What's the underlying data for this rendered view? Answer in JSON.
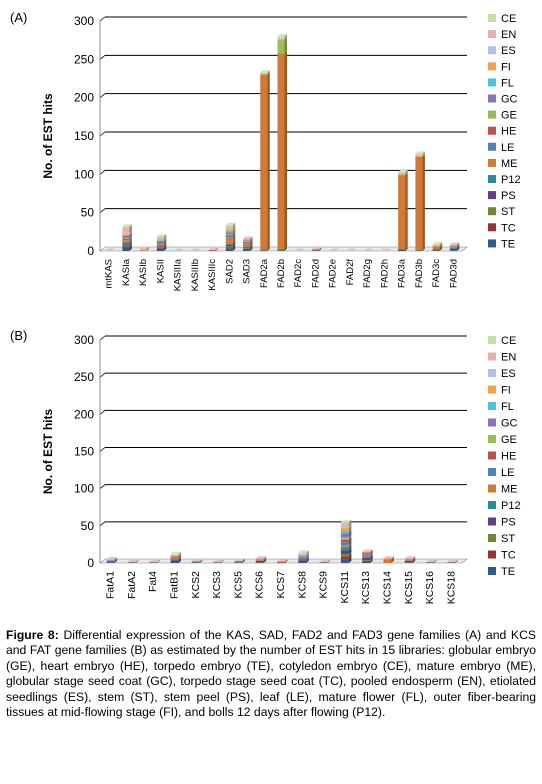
{
  "colors": {
    "CE": "#c5dfa5",
    "EN": "#e6b0b0",
    "ES": "#b2c2e0",
    "FI": "#f4a14c",
    "FL": "#4bc3df",
    "GC": "#8b72b6",
    "GE": "#9bbb59",
    "HE": "#c0504d",
    "LE": "#4f81bd",
    "ME": "#d07a36",
    "P12": "#2d8a9e",
    "PS": "#5f3f87",
    "ST": "#6f8a2e",
    "TC": "#943634",
    "TE": "#2e5b8e"
  },
  "legend_order": [
    "CE",
    "EN",
    "ES",
    "FI",
    "FL",
    "GC",
    "GE",
    "HE",
    "LE",
    "ME",
    "P12",
    "PS",
    "ST",
    "TC",
    "TE"
  ],
  "panels": [
    {
      "label": "(A)"
    },
    {
      "label": "(B)"
    }
  ],
  "chart_data": [
    {
      "type": "bar",
      "stacked": true,
      "panel": "(A)",
      "ylabel": "No. of EST hits",
      "ylim": [
        0,
        300
      ],
      "yticks": [
        0,
        50,
        100,
        150,
        200,
        250,
        300
      ],
      "grid": true,
      "legend_position": "right",
      "categories": [
        "mtKAS",
        "KASIa",
        "KASIb",
        "KASII",
        "KASIIIa",
        "KASIIIb",
        "KASIIIc",
        "SAD2",
        "SAD3",
        "FAD2a",
        "FAD2b",
        "FAD2c",
        "FAD2d",
        "FAD2e",
        "FAD2f",
        "FAD2g",
        "FAD2h",
        "FAD3a",
        "FAD3b",
        "FAD3c",
        "FAD3d"
      ],
      "series": [
        {
          "name": "TE",
          "values": [
            0,
            4,
            0,
            3,
            0,
            0,
            0,
            3,
            2,
            1,
            1,
            0,
            0,
            0,
            0,
            0,
            0,
            2,
            1,
            1,
            1
          ]
        },
        {
          "name": "TC",
          "values": [
            0,
            2,
            0,
            1,
            0,
            0,
            1,
            2,
            1,
            0,
            0,
            0,
            0,
            0,
            0,
            0,
            0,
            0,
            0,
            1,
            0
          ]
        },
        {
          "name": "ST",
          "values": [
            0,
            2,
            0,
            1,
            0,
            0,
            0,
            1,
            1,
            1,
            2,
            0,
            0,
            0,
            0,
            0,
            0,
            0,
            0,
            0,
            0
          ]
        },
        {
          "name": "PS",
          "values": [
            0,
            2,
            0,
            1,
            0,
            0,
            0,
            2,
            1,
            0,
            0,
            0,
            1,
            0,
            0,
            0,
            0,
            0,
            0,
            0,
            2
          ]
        },
        {
          "name": "P12",
          "values": [
            0,
            1,
            0,
            1,
            0,
            0,
            0,
            2,
            1,
            0,
            0,
            0,
            0,
            0,
            0,
            0,
            0,
            0,
            0,
            0,
            1
          ]
        },
        {
          "name": "ME",
          "values": [
            0,
            3,
            1,
            3,
            0,
            0,
            0,
            8,
            4,
            228,
            255,
            0,
            0,
            0,
            0,
            0,
            0,
            97,
            122,
            4,
            2
          ]
        },
        {
          "name": "LE",
          "values": [
            0,
            1,
            0,
            1,
            0,
            0,
            0,
            2,
            1,
            0,
            0,
            0,
            0,
            0,
            0,
            0,
            0,
            0,
            0,
            0,
            0
          ]
        },
        {
          "name": "HE",
          "values": [
            0,
            1,
            0,
            1,
            0,
            0,
            0,
            1,
            1,
            0,
            0,
            0,
            0,
            0,
            0,
            0,
            0,
            0,
            0,
            0,
            0
          ]
        },
        {
          "name": "GE",
          "values": [
            0,
            1,
            0,
            0,
            0,
            0,
            0,
            1,
            1,
            0,
            17,
            0,
            0,
            0,
            0,
            0,
            0,
            0,
            0,
            0,
            0
          ]
        },
        {
          "name": "GC",
          "values": [
            0,
            3,
            0,
            1,
            0,
            0,
            0,
            2,
            1,
            0,
            0,
            0,
            1,
            0,
            0,
            0,
            0,
            0,
            0,
            0,
            1
          ]
        },
        {
          "name": "FL",
          "values": [
            0,
            1,
            0,
            1,
            0,
            0,
            0,
            2,
            0,
            0,
            0,
            0,
            0,
            0,
            0,
            0,
            0,
            0,
            0,
            0,
            0
          ]
        },
        {
          "name": "FI",
          "values": [
            0,
            1,
            0,
            1,
            0,
            0,
            0,
            2,
            1,
            1,
            1,
            0,
            0,
            0,
            0,
            0,
            0,
            1,
            1,
            1,
            0
          ]
        },
        {
          "name": "ES",
          "values": [
            0,
            1,
            1,
            1,
            0,
            0,
            0,
            1,
            0,
            0,
            1,
            0,
            0,
            0,
            0,
            0,
            0,
            1,
            1,
            0,
            0
          ]
        },
        {
          "name": "EN",
          "values": [
            0,
            8,
            1,
            2,
            0,
            0,
            0,
            3,
            1,
            1,
            1,
            0,
            0,
            0,
            0,
            0,
            0,
            1,
            1,
            1,
            1
          ]
        },
        {
          "name": "CE",
          "values": [
            0,
            1,
            0,
            1,
            0,
            0,
            0,
            2,
            0,
            1,
            2,
            0,
            0,
            0,
            0,
            0,
            0,
            1,
            1,
            1,
            0
          ]
        }
      ]
    },
    {
      "type": "bar",
      "stacked": true,
      "panel": "(B)",
      "ylabel": "No. of EST hits",
      "ylim": [
        0,
        300
      ],
      "yticks": [
        0,
        50,
        100,
        150,
        200,
        250,
        300
      ],
      "grid": true,
      "legend_position": "right",
      "categories": [
        "FatA1",
        "FatA2",
        "Fat4",
        "FatB1",
        "KCS2",
        "KCS3",
        "KCS5",
        "KCS6",
        "KCS7",
        "KCS8",
        "KCS9",
        "KCS11",
        "KCS13",
        "KCS14",
        "KCS15",
        "KCS16",
        "KCS18"
      ],
      "series": [
        {
          "name": "TE",
          "values": [
            1,
            1,
            1,
            2,
            1,
            1,
            1,
            1,
            0,
            2,
            1,
            5,
            2,
            0,
            1,
            1,
            1
          ]
        },
        {
          "name": "TC",
          "values": [
            0,
            0,
            0,
            1,
            0,
            0,
            0,
            1,
            1,
            1,
            0,
            4,
            1,
            0,
            1,
            0,
            0
          ]
        },
        {
          "name": "ST",
          "values": [
            0,
            0,
            0,
            0,
            0,
            0,
            0,
            0,
            0,
            0,
            0,
            3,
            1,
            0,
            0,
            0,
            0
          ]
        },
        {
          "name": "PS",
          "values": [
            1,
            0,
            0,
            1,
            0,
            0,
            0,
            1,
            0,
            1,
            0,
            5,
            3,
            0,
            1,
            0,
            0
          ]
        },
        {
          "name": "P12",
          "values": [
            0,
            0,
            0,
            1,
            1,
            0,
            1,
            0,
            0,
            2,
            0,
            4,
            2,
            0,
            0,
            0,
            0
          ]
        },
        {
          "name": "ME",
          "values": [
            1,
            0,
            0,
            2,
            0,
            0,
            0,
            1,
            1,
            1,
            0,
            3,
            1,
            5,
            1,
            0,
            0
          ]
        },
        {
          "name": "LE",
          "values": [
            0,
            0,
            0,
            0,
            0,
            0,
            0,
            0,
            0,
            1,
            0,
            4,
            1,
            0,
            0,
            0,
            0
          ]
        },
        {
          "name": "HE",
          "values": [
            0,
            0,
            0,
            1,
            0,
            0,
            0,
            0,
            0,
            0,
            0,
            3,
            1,
            0,
            0,
            0,
            0
          ]
        },
        {
          "name": "GE",
          "values": [
            0,
            0,
            0,
            0,
            0,
            0,
            0,
            0,
            0,
            0,
            0,
            4,
            0,
            0,
            0,
            0,
            0
          ]
        },
        {
          "name": "GC",
          "values": [
            1,
            0,
            0,
            1,
            0,
            0,
            0,
            1,
            0,
            1,
            0,
            5,
            2,
            0,
            1,
            0,
            0
          ]
        },
        {
          "name": "FL",
          "values": [
            0,
            0,
            0,
            0,
            0,
            0,
            1,
            0,
            0,
            1,
            0,
            3,
            0,
            0,
            0,
            0,
            0
          ]
        },
        {
          "name": "FI",
          "values": [
            0,
            0,
            0,
            1,
            0,
            0,
            0,
            0,
            0,
            1,
            0,
            4,
            1,
            1,
            0,
            0,
            0
          ]
        },
        {
          "name": "ES",
          "values": [
            0,
            0,
            0,
            0,
            0,
            0,
            0,
            0,
            0,
            1,
            0,
            2,
            0,
            0,
            0,
            0,
            0
          ]
        },
        {
          "name": "EN",
          "values": [
            1,
            0,
            0,
            1,
            0,
            0,
            0,
            1,
            0,
            1,
            0,
            4,
            0,
            0,
            1,
            0,
            0
          ]
        },
        {
          "name": "CE",
          "values": [
            0,
            0,
            0,
            1,
            0,
            0,
            0,
            0,
            0,
            1,
            0,
            2,
            0,
            0,
            0,
            0,
            0
          ]
        }
      ]
    }
  ],
  "caption": {
    "figure_label": "Figure 8:",
    "text": " Differential expression of the KAS, SAD, FAD2 and FAD3 gene families (A) and KCS and FAT gene families (B) as estimated by the number of EST hits in 15 libraries: globular embryo (GE), heart embryo (HE), torpedo embryo (TE), cotyledon embryo (CE), mature embryo (ME), globular stage seed coat (GC), torpedo stage seed coat (TC), pooled endosperm (EN), etiolated seedlings (ES), stem (ST), stem peel (PS), leaf (LE), mature flower (FL), outer fiber-bearing tissues at mid-flowing stage (FI), and bolls 12 days after flowing (P12)."
  }
}
